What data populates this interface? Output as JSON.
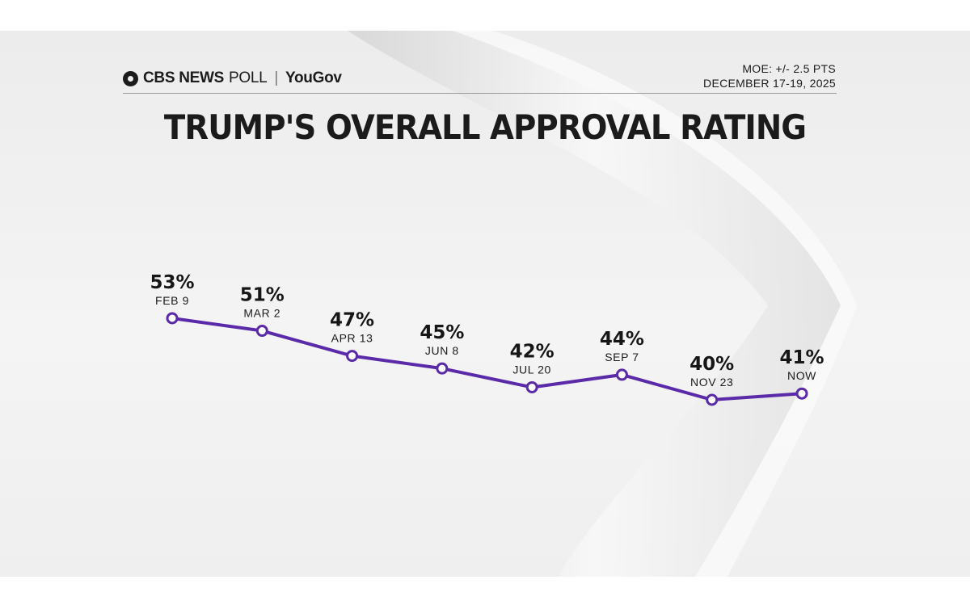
{
  "header": {
    "brand_primary": "CBS NEWS",
    "brand_secondary": "POLL",
    "brand_partner": "YouGov",
    "moe": "MOE: +/- 2.5 PTS",
    "dates": "DECEMBER 17-19, 2025"
  },
  "chart_data": {
    "type": "line",
    "title": "TRUMP'S OVERALL APPROVAL RATING",
    "categories": [
      "FEB 9",
      "MAR 2",
      "APR 13",
      "JUN 8",
      "JUL 20",
      "SEP 7",
      "NOV 23",
      "NOW"
    ],
    "values": [
      53,
      51,
      47,
      45,
      42,
      44,
      40,
      41
    ],
    "value_labels": [
      "53%",
      "51%",
      "47%",
      "45%",
      "42%",
      "44%",
      "40%",
      "41%"
    ],
    "series_color": "#5b2aa8",
    "marker_fill": "#ffffff",
    "xlabel": "",
    "ylabel": ""
  }
}
